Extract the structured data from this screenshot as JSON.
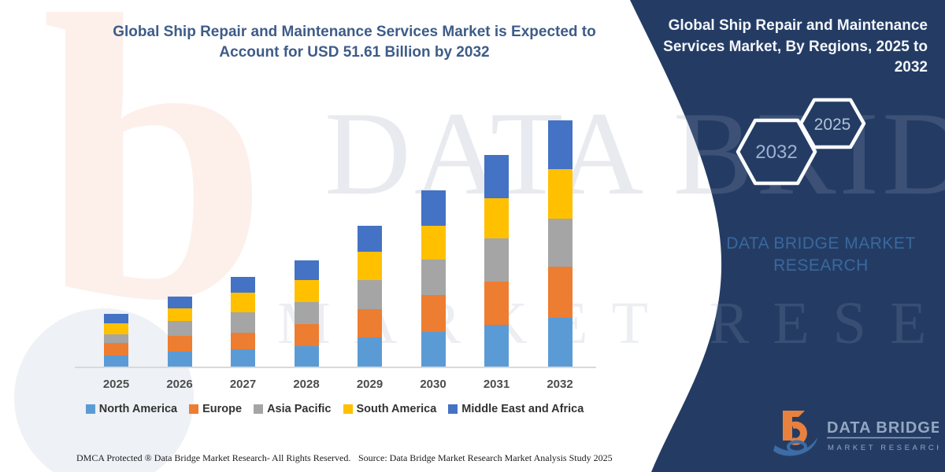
{
  "header": {
    "title_line1": "Global Ship Repair and Maintenance Services Market is Expected to",
    "title_line2": "Account for USD 51.61 Billion by 2032",
    "title_color": "#3E5C88"
  },
  "chart_data": {
    "type": "bar",
    "stacked": true,
    "title": "Global Ship Repair and Maintenance Services Market is Expected to Account for USD 51.61 Billion by 2032",
    "annotation": "USD 51.61 Billion by 2032",
    "unit": "USD Billion (values estimated from bar proportions)",
    "categories": [
      "2025",
      "2026",
      "2027",
      "2028",
      "2029",
      "2030",
      "2031",
      "2032"
    ],
    "series": [
      {
        "name": "North America",
        "color": "#5B9BD5",
        "values": [
          2.3,
          3.2,
          3.6,
          4.3,
          6.1,
          7.3,
          8.8,
          10.2
        ]
      },
      {
        "name": "Europe",
        "color": "#ED7D31",
        "values": [
          2.6,
          3.3,
          3.5,
          4.6,
          5.9,
          7.7,
          9.0,
          10.7
        ]
      },
      {
        "name": "Asia Pacific",
        "color": "#A5A5A5",
        "values": [
          1.8,
          3.1,
          4.2,
          4.6,
          6.1,
          7.5,
          9.1,
          10.1
        ]
      },
      {
        "name": "South America",
        "color": "#FFC000",
        "values": [
          2.3,
          2.6,
          4.2,
          4.6,
          6.0,
          7.0,
          8.4,
          10.3
        ]
      },
      {
        "name": "Middle East and Africa",
        "color": "#4472C4",
        "values": [
          2.0,
          2.5,
          3.3,
          4.2,
          5.4,
          7.5,
          9.0,
          10.3
        ]
      }
    ],
    "totals": [
      11.0,
      14.7,
      18.8,
      22.3,
      29.5,
      37.0,
      44.3,
      51.61
    ],
    "xlabel": "",
    "ylabel": "",
    "ylim": [
      0,
      55
    ],
    "gridlines": false,
    "y_axis_visible": false,
    "baseline_color": "#D9D9D9",
    "tick_color": "#4D4D4D",
    "legend_position": "bottom"
  },
  "panel": {
    "bg_color": "#243C64",
    "title": "Global Ship Repair and Maintenance Services Market, By Regions, 2025 to 2032",
    "hexagon_left_label": "2032",
    "hexagon_right_label": "2025",
    "brand_line1": "DATA BRIDGE MARKET",
    "brand_line2": "RESEARCH",
    "logo_text": "DATA BRIDGE",
    "logo_subtext": "MARKET RESEARCH"
  },
  "watermark": {
    "letter": "b",
    "line1": "DATA BRIDGE",
    "line2": "MARKET RESEARCH"
  },
  "footer": {
    "left": "DMCA Protected ® Data Bridge Market Research-  All Rights Reserved.",
    "right": "Source: Data Bridge Market Research  Market Analysis Study 2025"
  }
}
